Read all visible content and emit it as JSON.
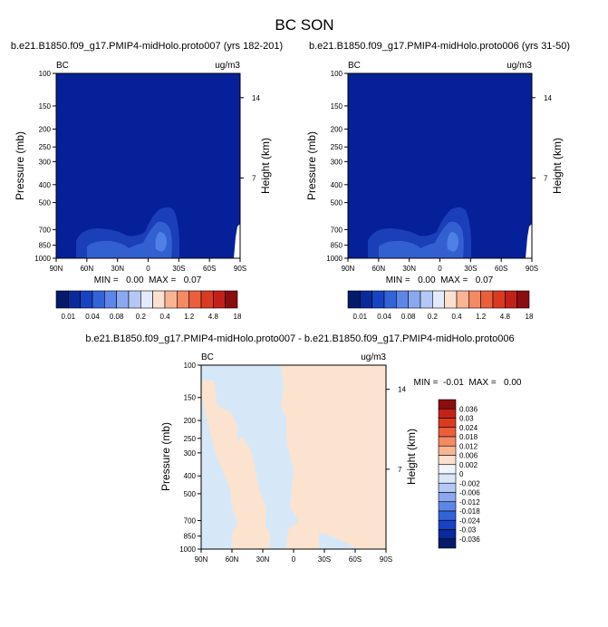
{
  "title": "BC SON",
  "chart_data": [
    {
      "type": "heatmap",
      "title": "b.e21.B1850.f09_g17.PMIP4-midHolo.proto007 (yrs 182-201)",
      "corner_left": "BC",
      "corner_right": "ug/m3",
      "xlabel": "",
      "ylabel": "Pressure (mb)",
      "ylabel_right": "Height (km)",
      "x_ticks": [
        "90N",
        "60N",
        "30N",
        "0",
        "30S",
        "60S",
        "90S"
      ],
      "y_ticks": [
        "100",
        "150",
        "200",
        "250",
        "300",
        "400",
        "500",
        "700",
        "850",
        "1000"
      ],
      "height_ticks": [
        "14",
        "7"
      ],
      "ylim": [
        1000,
        100
      ],
      "y_scale": "log",
      "stats": "MIN =   0.00  MAX =   0.07",
      "colorbar_labels": [
        "0.01",
        "0.04",
        "0.08",
        "0.2",
        "0.4",
        "1.2",
        "4.8",
        "18"
      ]
    },
    {
      "type": "heatmap",
      "title": "b.e21.B1850.f09_g17.PMIP4-midHolo.proto006 (yrs 31-50)",
      "corner_left": "BC",
      "corner_right": "ug/m3",
      "xlabel": "",
      "ylabel": "Pressure (mb)",
      "ylabel_right": "Height (km)",
      "x_ticks": [
        "90N",
        "60N",
        "30N",
        "0",
        "30S",
        "60S",
        "90S"
      ],
      "y_ticks": [
        "100",
        "150",
        "200",
        "250",
        "300",
        "400",
        "500",
        "700",
        "850",
        "1000"
      ],
      "height_ticks": [
        "14",
        "7"
      ],
      "ylim": [
        1000,
        100
      ],
      "y_scale": "log",
      "stats": "MIN =   0.00  MAX =   0.07",
      "colorbar_labels": [
        "0.01",
        "0.04",
        "0.08",
        "0.2",
        "0.4",
        "1.2",
        "4.8",
        "18"
      ]
    },
    {
      "type": "heatmap",
      "title": "b.e21.B1850.f09_g17.PMIP4-midHolo.proto007 - b.e21.B1850.f09_g17.PMIP4-midHolo.proto006",
      "corner_left": "BC",
      "corner_right": "ug/m3",
      "xlabel": "",
      "ylabel": "Pressure (mb)",
      "ylabel_right": "Height (km)",
      "x_ticks": [
        "90N",
        "60N",
        "30N",
        "0",
        "30S",
        "60S",
        "90S"
      ],
      "y_ticks": [
        "100",
        "150",
        "200",
        "250",
        "300",
        "400",
        "500",
        "700",
        "850",
        "1000"
      ],
      "height_ticks": [
        "14",
        "7"
      ],
      "ylim": [
        1000,
        100
      ],
      "y_scale": "log",
      "stats": "MIN =  -0.01  MAX =   0.00",
      "colorbar_labels": [
        "0.036",
        "0.03",
        "0.024",
        "0.018",
        "0.012",
        "0.006",
        "0.002",
        "0",
        "-0.002",
        "-0.006",
        "-0.012",
        "-0.018",
        "-0.024",
        "-0.03",
        "-0.036"
      ]
    }
  ],
  "colors": {
    "field_background": "#06209a",
    "field_level1": "#1a3fb8",
    "field_level2": "#3360d0",
    "field_level3": "#4f80e6",
    "diff_negative": "#d6e8f8",
    "diff_positive": "#fbe3cf",
    "scale_main": [
      "#061a6b",
      "#0a2a9a",
      "#1742c2",
      "#3363d8",
      "#5d86e8",
      "#8aa8f0",
      "#b5c8f5",
      "#e2ebfb",
      "#fbe0cf",
      "#f8b493",
      "#f28a64",
      "#eb5e3c",
      "#db3a22",
      "#c2211a",
      "#8a0e10"
    ],
    "scale_diff": [
      "#8a0e10",
      "#c2211a",
      "#db3a22",
      "#eb5e3c",
      "#f28a64",
      "#f8b493",
      "#fbe0cf",
      "#f0f4fb",
      "#d9e6f7",
      "#b5c8f5",
      "#8aa8f0",
      "#5d86e8",
      "#3363d8",
      "#1742c2",
      "#0a2a9a",
      "#061a6b"
    ]
  }
}
